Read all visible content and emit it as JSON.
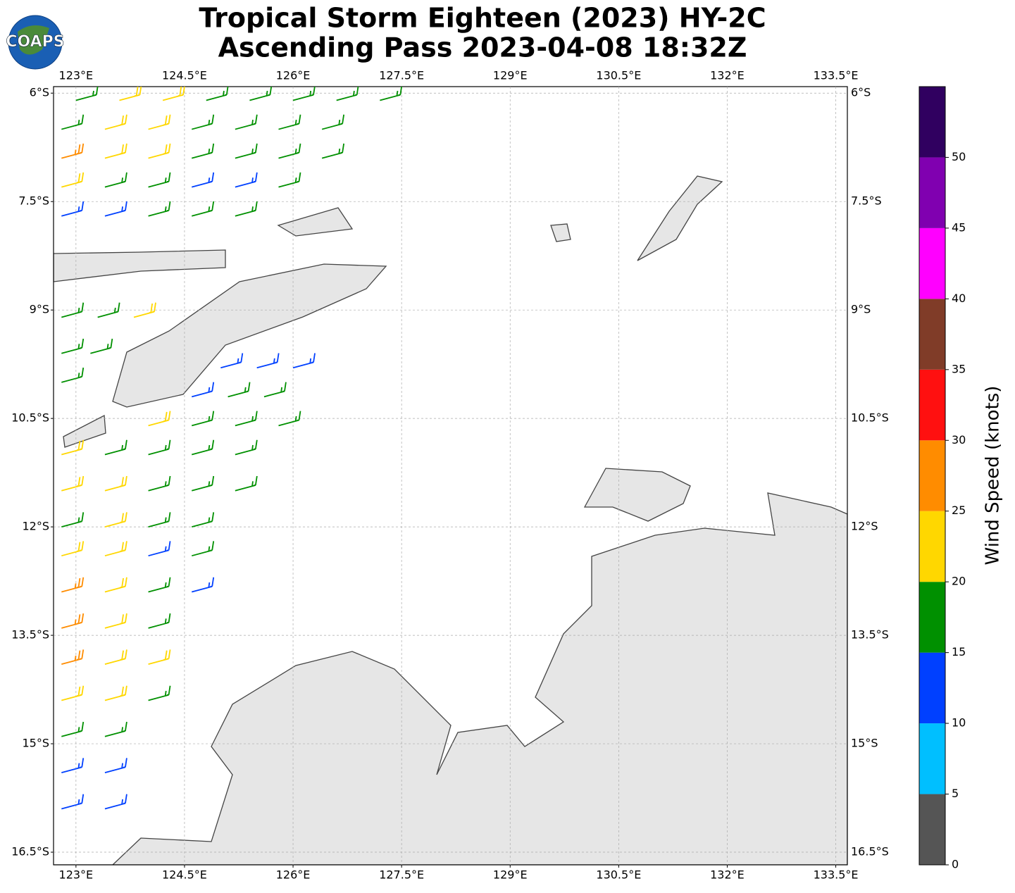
{
  "chart_data": {
    "type": "barbs",
    "title": [
      "Tropical Storm Eighteen (2023) HY-2C",
      "Ascending Pass 2023-04-08 18:32Z"
    ],
    "logo": "COAPS",
    "xlim": [
      122.69,
      133.66
    ],
    "ylim": [
      -16.675,
      -5.91
    ],
    "xticks": [
      {
        "value": 123,
        "label": "123°E"
      },
      {
        "value": 124.5,
        "label": "124.5°E"
      },
      {
        "value": 126,
        "label": "126°E"
      },
      {
        "value": 127.5,
        "label": "127.5°E"
      },
      {
        "value": 129,
        "label": "129°E"
      },
      {
        "value": 130.5,
        "label": "130.5°E"
      },
      {
        "value": 132,
        "label": "132°E"
      },
      {
        "value": 133.5,
        "label": "133.5°E"
      }
    ],
    "yticks": [
      {
        "value": -6,
        "label": "6°S"
      },
      {
        "value": -7.5,
        "label": "7.5°S"
      },
      {
        "value": -9,
        "label": "9°S"
      },
      {
        "value": -10.5,
        "label": "10.5°S"
      },
      {
        "value": -12,
        "label": "12°S"
      },
      {
        "value": -13.5,
        "label": "13.5°S"
      },
      {
        "value": -15,
        "label": "15°S"
      },
      {
        "value": -16.5,
        "label": "16.5°S"
      }
    ],
    "grid": true,
    "colorbar": {
      "label": "Wind Speed (knots)",
      "lim": [
        0,
        55
      ],
      "ticks": [
        0,
        5,
        10,
        15,
        20,
        25,
        30,
        35,
        40,
        45,
        50
      ],
      "bounds": [
        0,
        5,
        10,
        15,
        20,
        25,
        30,
        35,
        40,
        45,
        50,
        55
      ],
      "colors": [
        "#555555",
        "#00bfff",
        "#0040ff",
        "#009000",
        "#ffd700",
        "#ff8c00",
        "#ff1010",
        "#803c28",
        "#ff00ff",
        "#8000b0",
        "#300060"
      ]
    },
    "barbs": [
      {
        "lat": -6.1,
        "lon": [
          123.0,
          123.6,
          124.2,
          124.8,
          125.4,
          126.0,
          126.6,
          127.2
        ],
        "speed": [
          17,
          22,
          22,
          18,
          17,
          18,
          17,
          17
        ]
      },
      {
        "lat": -6.5,
        "lon": [
          122.8,
          123.4,
          124.0,
          124.6,
          125.2,
          125.8,
          126.4
        ],
        "speed": [
          18,
          22,
          22,
          17,
          18,
          17,
          17
        ]
      },
      {
        "lat": -6.9,
        "lon": [
          122.8,
          123.4,
          124.0,
          124.6,
          125.2,
          125.8,
          126.4
        ],
        "speed": [
          27,
          22,
          22,
          17,
          17,
          18,
          17
        ]
      },
      {
        "lat": -7.3,
        "lon": [
          122.8,
          123.4,
          124.0,
          124.6,
          125.2,
          125.8
        ],
        "speed": [
          22,
          18,
          17,
          14,
          13,
          17
        ]
      },
      {
        "lat": -7.7,
        "lon": [
          122.8,
          123.4,
          124.0,
          124.6,
          125.2
        ],
        "speed": [
          14,
          13,
          17,
          17,
          17
        ]
      },
      {
        "lat": -9.1,
        "lon": [
          122.8,
          123.3,
          123.8
        ],
        "speed": [
          17,
          17,
          22
        ]
      },
      {
        "lat": -9.6,
        "lon": [
          122.8,
          123.2
        ],
        "speed": [
          17,
          17
        ]
      },
      {
        "lat": -9.8,
        "lon": [
          125.0,
          125.5,
          126.0
        ],
        "speed": [
          13,
          13,
          13
        ]
      },
      {
        "lat": -10.0,
        "lon": [
          122.8
        ],
        "speed": [
          17
        ]
      },
      {
        "lat": -10.2,
        "lon": [
          124.6,
          125.1,
          125.6
        ],
        "speed": [
          13,
          17,
          17
        ]
      },
      {
        "lat": -10.6,
        "lon": [
          124.0,
          124.6,
          125.2,
          125.8
        ],
        "speed": [
          22,
          17,
          17,
          17
        ]
      },
      {
        "lat": -11.0,
        "lon": [
          122.8,
          123.4,
          124.0,
          124.6,
          125.2
        ],
        "speed": [
          22,
          17,
          17,
          17,
          17
        ]
      },
      {
        "lat": -11.5,
        "lon": [
          122.8,
          123.4,
          124.0,
          124.6,
          125.2
        ],
        "speed": [
          22,
          22,
          17,
          17,
          17
        ]
      },
      {
        "lat": -12.0,
        "lon": [
          122.8,
          123.4,
          124.0,
          124.6
        ],
        "speed": [
          17,
          22,
          17,
          17
        ]
      },
      {
        "lat": -12.4,
        "lon": [
          122.8,
          123.4,
          124.0,
          124.6
        ],
        "speed": [
          22,
          22,
          13,
          17
        ]
      },
      {
        "lat": -12.9,
        "lon": [
          122.8,
          123.4,
          124.0,
          124.6
        ],
        "speed": [
          27,
          22,
          17,
          13
        ]
      },
      {
        "lat": -13.4,
        "lon": [
          122.8,
          123.4,
          124.0
        ],
        "speed": [
          27,
          22,
          17
        ]
      },
      {
        "lat": -13.9,
        "lon": [
          122.8,
          123.4,
          124.0
        ],
        "speed": [
          27,
          22,
          22
        ]
      },
      {
        "lat": -14.4,
        "lon": [
          122.8,
          123.4,
          124.0
        ],
        "speed": [
          22,
          22,
          17
        ]
      },
      {
        "lat": -14.9,
        "lon": [
          122.8,
          123.4
        ],
        "speed": [
          17,
          17
        ]
      },
      {
        "lat": -15.4,
        "lon": [
          122.8,
          123.4
        ],
        "speed": [
          13,
          13
        ]
      },
      {
        "lat": -15.9,
        "lon": [
          122.8,
          123.4
        ],
        "speed": [
          13,
          13
        ]
      }
    ]
  }
}
